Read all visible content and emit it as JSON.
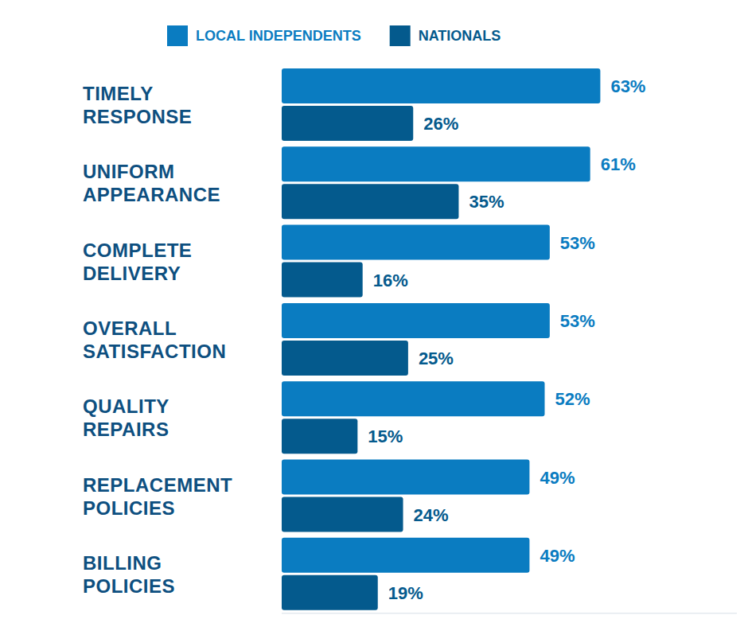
{
  "chart_data": {
    "type": "bar",
    "orientation": "horizontal",
    "categories": [
      "TIMELY RESPONSE",
      "UNIFORM APPEARANCE",
      "COMPLETE DELIVERY",
      "OVERALL SATISFACTION",
      "QUALITY REPAIRS",
      "REPLACEMENT POLICIES",
      "BILLING POLICIES"
    ],
    "series": [
      {
        "name": "LOCAL INDEPENDENTS",
        "color": "#0a7cc1",
        "values": [
          63,
          61,
          53,
          53,
          52,
          49,
          49
        ],
        "value_labels": [
          "63%",
          "61%",
          "53%",
          "53%",
          "52%",
          "49%",
          "49%"
        ]
      },
      {
        "name": "NATIONALS",
        "color": "#045a8d",
        "values": [
          26,
          35,
          16,
          25,
          15,
          24,
          19
        ],
        "value_labels": [
          "26%",
          "35%",
          "16%",
          "25%",
          "15%",
          "24%",
          "19%"
        ]
      }
    ],
    "xlim": [
      0,
      90
    ],
    "data_labels": true,
    "tick_labels": false,
    "legend": "top"
  }
}
